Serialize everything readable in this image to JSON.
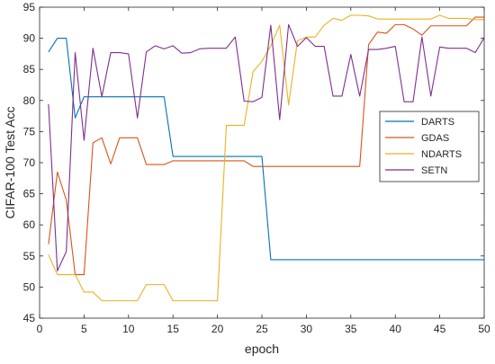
{
  "chart_data": {
    "type": "line",
    "title": "",
    "xlabel": "epoch",
    "ylabel": "CIFAR-100 Test Acc",
    "xlim": [
      0,
      50
    ],
    "ylim": [
      45,
      95
    ],
    "xticks": [
      0,
      5,
      10,
      15,
      20,
      25,
      30,
      35,
      40,
      45,
      50
    ],
    "yticks": [
      45,
      50,
      55,
      60,
      65,
      70,
      75,
      80,
      85,
      90,
      95
    ],
    "grid": false,
    "legend_position": "right",
    "x": [
      1,
      2,
      3,
      4,
      5,
      6,
      7,
      8,
      9,
      10,
      11,
      12,
      13,
      14,
      15,
      16,
      17,
      18,
      19,
      20,
      21,
      22,
      23,
      24,
      25,
      26,
      27,
      28,
      29,
      30,
      31,
      32,
      33,
      34,
      35,
      36,
      37,
      38,
      39,
      40,
      41,
      42,
      43,
      44,
      45,
      46,
      47,
      48,
      49,
      50
    ],
    "series": [
      {
        "name": "DARTS",
        "color": "#0072BD",
        "values": [
          87.8,
          90,
          90,
          77.2,
          80.6,
          80.6,
          80.6,
          80.6,
          80.6,
          80.6,
          80.6,
          80.6,
          80.6,
          80.6,
          71,
          71,
          71,
          71,
          71,
          71,
          71,
          71,
          71,
          71,
          71,
          54.4,
          54.4,
          54.4,
          54.4,
          54.4,
          54.4,
          54.4,
          54.4,
          54.4,
          54.4,
          54.4,
          54.4,
          54.4,
          54.4,
          54.4,
          54.4,
          54.4,
          54.4,
          54.4,
          54.4,
          54.4,
          54.4,
          54.4,
          54.4,
          54.4
        ]
      },
      {
        "name": "GDAS",
        "color": "#D95319",
        "values": [
          56.9,
          68.5,
          64,
          52,
          52,
          73.2,
          74,
          69.8,
          74,
          74,
          74,
          69.7,
          69.7,
          69.7,
          70.3,
          70.3,
          70.3,
          70.3,
          70.3,
          70.3,
          70.3,
          70.3,
          70.3,
          69.4,
          69.4,
          69.4,
          69.4,
          69.4,
          69.4,
          69.4,
          69.4,
          69.4,
          69.4,
          69.4,
          69.4,
          69.4,
          89,
          91,
          90.8,
          92.2,
          92.2,
          91.5,
          90.5,
          92,
          92,
          92,
          92,
          92,
          93.4,
          93.4
        ]
      },
      {
        "name": "NDARTS",
        "color": "#EDB120",
        "values": [
          55.2,
          52,
          52,
          52,
          49.2,
          49.2,
          47.8,
          47.8,
          47.8,
          47.8,
          47.8,
          50.4,
          50.4,
          50.4,
          47.8,
          47.8,
          47.8,
          47.8,
          47.8,
          47.8,
          76,
          76,
          76,
          84.6,
          86.3,
          88.8,
          92.1,
          79.3,
          89.6,
          90.2,
          90.2,
          92.1,
          93.2,
          92.9,
          93.7,
          93.7,
          93.6,
          93.1,
          93.1,
          93.1,
          93.1,
          93.1,
          93.1,
          93.1,
          93.7,
          93.2,
          93.2,
          93.2,
          93,
          93
        ]
      },
      {
        "name": "SETN",
        "color": "#7E2F8E",
        "values": [
          79.4,
          52.6,
          55.7,
          87.7,
          73.6,
          88.4,
          80.6,
          87.7,
          87.7,
          87.5,
          77.2,
          87.8,
          88.8,
          88.3,
          88.8,
          87.6,
          87.7,
          88.3,
          88.4,
          88.4,
          88.4,
          90.2,
          79.9,
          79.8,
          80.5,
          92.1,
          76.9,
          92.2,
          88.7,
          90.1,
          88.7,
          88.7,
          80.7,
          80.7,
          87.4,
          80.7,
          88.2,
          88.2,
          88.4,
          88.7,
          79.8,
          79.8,
          90.2,
          80.7,
          88.6,
          88.4,
          88.4,
          88.4,
          87.7,
          90.1
        ]
      }
    ]
  }
}
